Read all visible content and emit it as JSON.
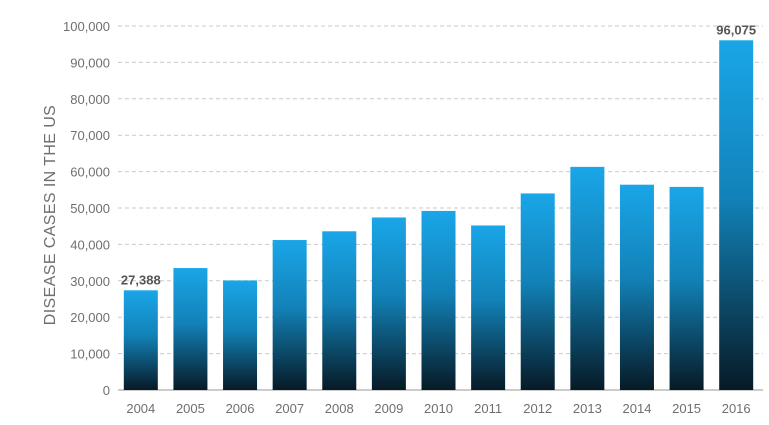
{
  "chart_data": {
    "type": "bar",
    "ylabel": "DISEASE CASES IN THE US",
    "xlabel": "",
    "title": "",
    "categories": [
      "2004",
      "2005",
      "2006",
      "2007",
      "2008",
      "2009",
      "2010",
      "2011",
      "2012",
      "2013",
      "2014",
      "2015",
      "2016"
    ],
    "values": [
      27388,
      33500,
      30100,
      41200,
      43600,
      47400,
      49200,
      45200,
      54000,
      61300,
      56400,
      55800,
      96075
    ],
    "data_labels": [
      {
        "category": "2004",
        "text": "27,388"
      },
      {
        "category": "2016",
        "text": "96,075"
      }
    ],
    "ylim": [
      0,
      100000
    ],
    "yticks": [
      0,
      10000,
      20000,
      30000,
      40000,
      50000,
      60000,
      70000,
      80000,
      90000,
      100000
    ],
    "ytick_labels": [
      "0",
      "10,000",
      "20,000",
      "30,000",
      "40,000",
      "50,000",
      "60,000",
      "70,000",
      "80,000",
      "90,000",
      "100,000"
    ],
    "grid": true,
    "legend": "none",
    "colors": {
      "bar_top": "#1aa6e8",
      "bar_bottom": "#071a26",
      "grid": "#c9c9c9",
      "text": "#6f6f6f"
    }
  }
}
